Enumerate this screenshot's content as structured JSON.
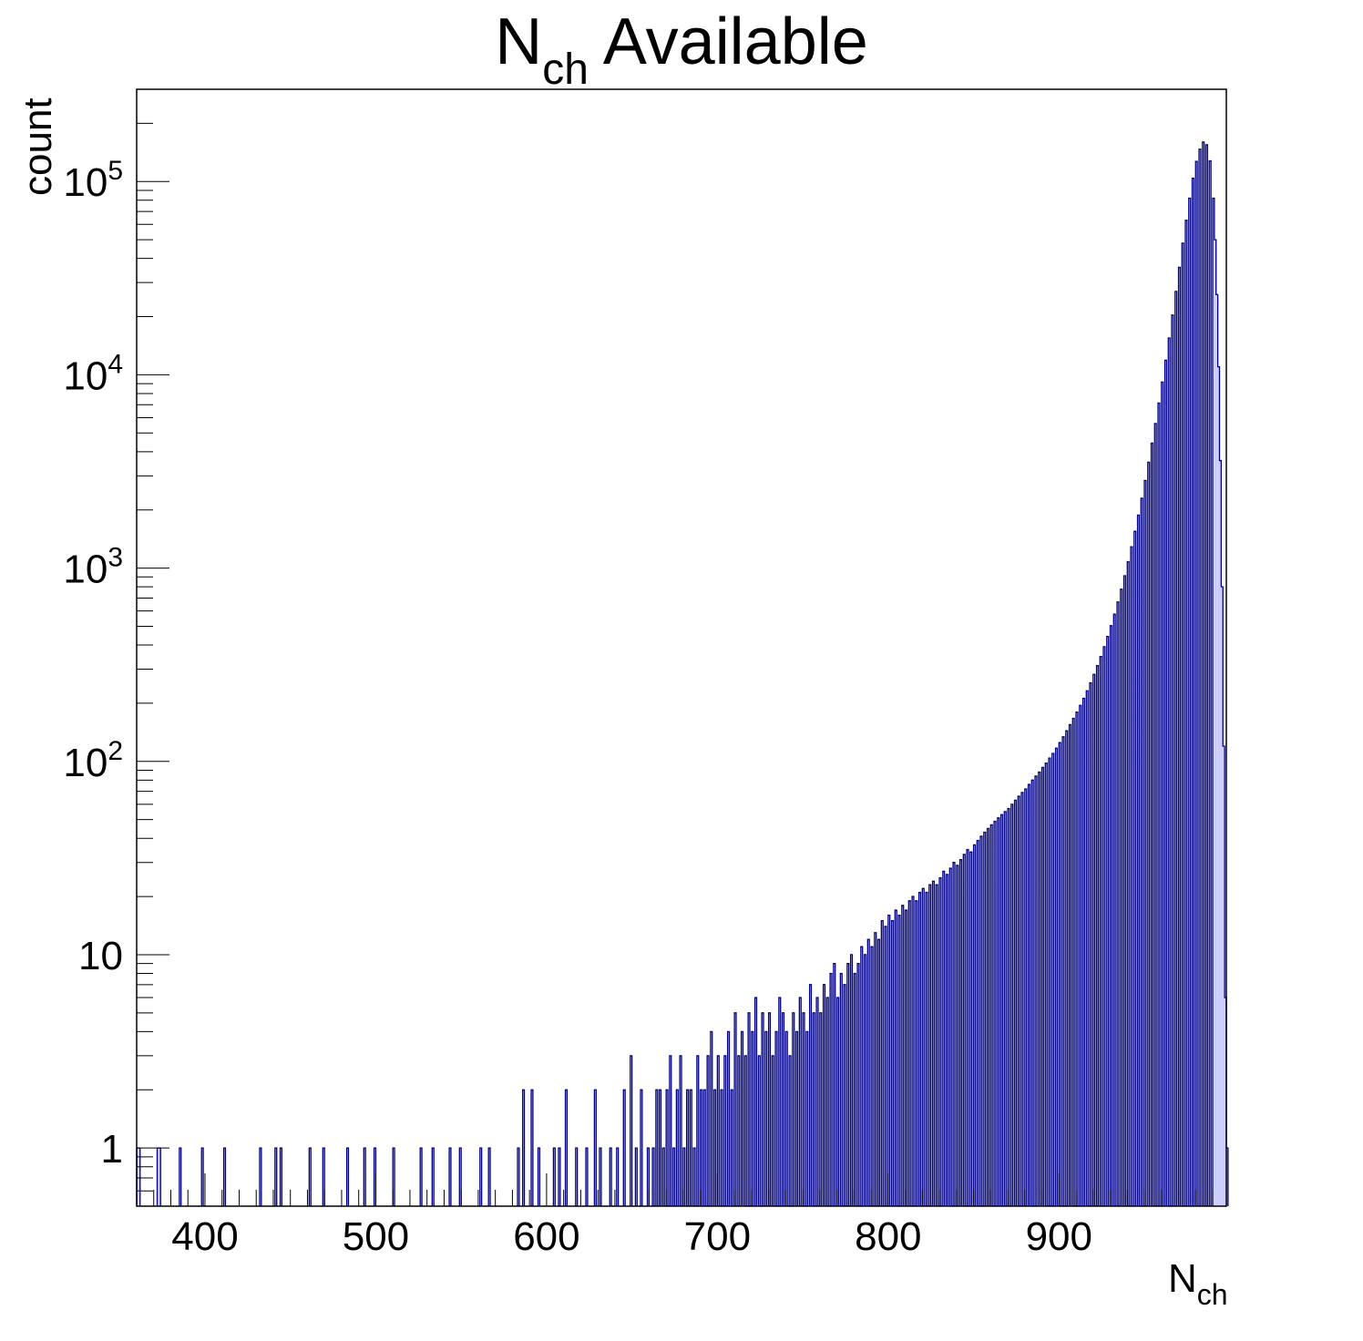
{
  "chart_data": {
    "type": "histogram",
    "title_main": "N",
    "title_sub": "ch",
    "title_rest": " Available",
    "xlabel_main": "N",
    "xlabel_sub": "ch",
    "ylabel": "count",
    "xlim": [
      360,
      998
    ],
    "ylim": [
      0.5,
      300000
    ],
    "y_scale": "log",
    "bin_width": 1,
    "x_ticks": [
      {
        "value": 400,
        "label": "400"
      },
      {
        "value": 500,
        "label": "500"
      },
      {
        "value": 600,
        "label": "600"
      },
      {
        "value": 700,
        "label": "700"
      },
      {
        "value": 800,
        "label": "800"
      },
      {
        "value": 900,
        "label": "900"
      }
    ],
    "y_ticks": [
      {
        "value": 1,
        "base": "1",
        "exp": ""
      },
      {
        "value": 10,
        "base": "10",
        "exp": ""
      },
      {
        "value": 100,
        "base": "10",
        "exp": "2"
      },
      {
        "value": 1000,
        "base": "10",
        "exp": "3"
      },
      {
        "value": 10000,
        "base": "10",
        "exp": "4"
      },
      {
        "value": 100000,
        "base": "10",
        "exp": "5"
      }
    ],
    "fill_color": "#ccccff",
    "line_color": "#000080",
    "bins": [
      [
        360,
        1
      ],
      [
        361,
        1
      ],
      [
        372,
        1
      ],
      [
        373,
        1
      ],
      [
        385,
        1
      ],
      [
        398,
        1
      ],
      [
        411,
        1
      ],
      [
        432,
        1
      ],
      [
        441,
        1
      ],
      [
        444,
        1
      ],
      [
        461,
        1
      ],
      [
        469,
        1
      ],
      [
        483,
        1
      ],
      [
        493,
        1
      ],
      [
        499,
        1
      ],
      [
        510,
        1
      ],
      [
        526,
        1
      ],
      [
        533,
        1
      ],
      [
        543,
        1
      ],
      [
        549,
        1
      ],
      [
        561,
        1
      ],
      [
        566,
        1
      ],
      [
        583,
        1
      ],
      [
        586,
        2
      ],
      [
        591,
        2
      ],
      [
        595,
        1
      ],
      [
        604,
        1
      ],
      [
        607,
        1
      ],
      [
        611,
        2
      ],
      [
        617,
        1
      ],
      [
        623,
        1
      ],
      [
        628,
        2
      ],
      [
        631,
        1
      ],
      [
        637,
        1
      ],
      [
        641,
        1
      ],
      [
        645,
        2
      ],
      [
        649,
        3
      ],
      [
        652,
        1
      ],
      [
        655,
        2
      ],
      [
        659,
        1
      ],
      [
        662,
        1
      ],
      [
        664,
        2
      ],
      [
        666,
        2
      ],
      [
        668,
        1
      ],
      [
        670,
        2
      ],
      [
        672,
        3
      ],
      [
        674,
        1
      ],
      [
        676,
        2
      ],
      [
        678,
        3
      ],
      [
        680,
        1
      ],
      [
        682,
        2
      ],
      [
        684,
        2
      ],
      [
        686,
        1
      ],
      [
        688,
        3
      ],
      [
        690,
        2
      ],
      [
        692,
        2
      ],
      [
        694,
        3
      ],
      [
        696,
        4
      ],
      [
        698,
        2
      ],
      [
        700,
        3
      ],
      [
        702,
        2
      ],
      [
        704,
        3
      ],
      [
        706,
        4
      ],
      [
        708,
        2
      ],
      [
        710,
        5
      ],
      [
        712,
        3
      ],
      [
        714,
        4
      ],
      [
        716,
        3
      ],
      [
        718,
        5
      ],
      [
        720,
        4
      ],
      [
        722,
        6
      ],
      [
        724,
        3
      ],
      [
        726,
        5
      ],
      [
        728,
        4
      ],
      [
        730,
        5
      ],
      [
        732,
        3
      ],
      [
        734,
        4
      ],
      [
        736,
        6
      ],
      [
        738,
        5
      ],
      [
        740,
        4
      ],
      [
        742,
        3
      ],
      [
        744,
        5
      ],
      [
        746,
        4
      ],
      [
        748,
        6
      ],
      [
        750,
        5
      ],
      [
        752,
        4
      ],
      [
        754,
        7
      ],
      [
        756,
        5
      ],
      [
        758,
        6
      ],
      [
        760,
        5
      ],
      [
        762,
        7
      ],
      [
        764,
        6
      ],
      [
        766,
        8
      ],
      [
        768,
        9
      ],
      [
        770,
        6
      ],
      [
        772,
        8
      ],
      [
        774,
        7
      ],
      [
        776,
        9
      ],
      [
        778,
        10
      ],
      [
        780,
        8
      ],
      [
        782,
        9
      ],
      [
        784,
        11
      ],
      [
        786,
        10
      ],
      [
        788,
        12
      ],
      [
        790,
        11
      ],
      [
        792,
        13
      ],
      [
        794,
        12
      ],
      [
        796,
        15
      ],
      [
        798,
        14
      ],
      [
        800,
        16
      ],
      [
        802,
        15
      ],
      [
        804,
        17
      ],
      [
        806,
        16
      ],
      [
        808,
        18
      ],
      [
        810,
        17
      ],
      [
        812,
        19
      ],
      [
        814,
        20
      ],
      [
        816,
        19
      ],
      [
        818,
        21
      ],
      [
        820,
        22
      ],
      [
        822,
        21
      ],
      [
        824,
        23
      ],
      [
        826,
        24
      ],
      [
        828,
        23
      ],
      [
        830,
        25
      ],
      [
        832,
        27
      ],
      [
        834,
        26
      ],
      [
        836,
        28
      ],
      [
        838,
        30
      ],
      [
        840,
        29
      ],
      [
        842,
        31
      ],
      [
        844,
        33
      ],
      [
        846,
        35
      ],
      [
        848,
        34
      ],
      [
        850,
        37
      ],
      [
        852,
        39
      ],
      [
        854,
        41
      ],
      [
        856,
        43
      ],
      [
        858,
        45
      ],
      [
        860,
        47
      ],
      [
        862,
        49
      ],
      [
        864,
        51
      ],
      [
        866,
        53
      ],
      [
        868,
        55
      ],
      [
        870,
        57
      ],
      [
        872,
        60
      ],
      [
        874,
        63
      ],
      [
        876,
        66
      ],
      [
        878,
        69
      ],
      [
        880,
        72
      ],
      [
        882,
        76
      ],
      [
        884,
        80
      ],
      [
        886,
        84
      ],
      [
        888,
        88
      ],
      [
        890,
        93
      ],
      [
        892,
        98
      ],
      [
        894,
        104
      ],
      [
        896,
        110
      ],
      [
        898,
        117
      ],
      [
        900,
        125
      ],
      [
        902,
        134
      ],
      [
        904,
        144
      ],
      [
        906,
        155
      ],
      [
        908,
        167
      ],
      [
        910,
        180
      ],
      [
        912,
        195
      ],
      [
        914,
        212
      ],
      [
        916,
        232
      ],
      [
        918,
        255
      ],
      [
        920,
        282
      ],
      [
        922,
        313
      ],
      [
        924,
        349
      ],
      [
        926,
        392
      ],
      [
        928,
        443
      ],
      [
        930,
        504
      ],
      [
        932,
        578
      ],
      [
        934,
        668
      ],
      [
        936,
        778
      ],
      [
        938,
        913
      ],
      [
        940,
        1080
      ],
      [
        942,
        1290
      ],
      [
        944,
        1550
      ],
      [
        946,
        1880
      ],
      [
        948,
        2300
      ],
      [
        950,
        2840
      ],
      [
        952,
        3530
      ],
      [
        954,
        4430
      ],
      [
        956,
        5600
      ],
      [
        958,
        7140
      ],
      [
        960,
        9170
      ],
      [
        962,
        11900
      ],
      [
        964,
        15500
      ],
      [
        966,
        20400
      ],
      [
        968,
        27000
      ],
      [
        970,
        36000
      ],
      [
        972,
        48000
      ],
      [
        974,
        63000
      ],
      [
        976,
        82000
      ],
      [
        978,
        104000
      ],
      [
        980,
        127000
      ],
      [
        982,
        147000
      ],
      [
        984,
        160000
      ],
      [
        986,
        155000
      ],
      [
        988,
        128000
      ],
      [
        990,
        82000
      ],
      [
        991,
        50000
      ],
      [
        992,
        26000
      ],
      [
        993,
        11000
      ],
      [
        994,
        3600
      ],
      [
        995,
        800
      ],
      [
        996,
        120
      ],
      [
        997,
        6
      ],
      [
        998,
        1
      ]
    ]
  }
}
